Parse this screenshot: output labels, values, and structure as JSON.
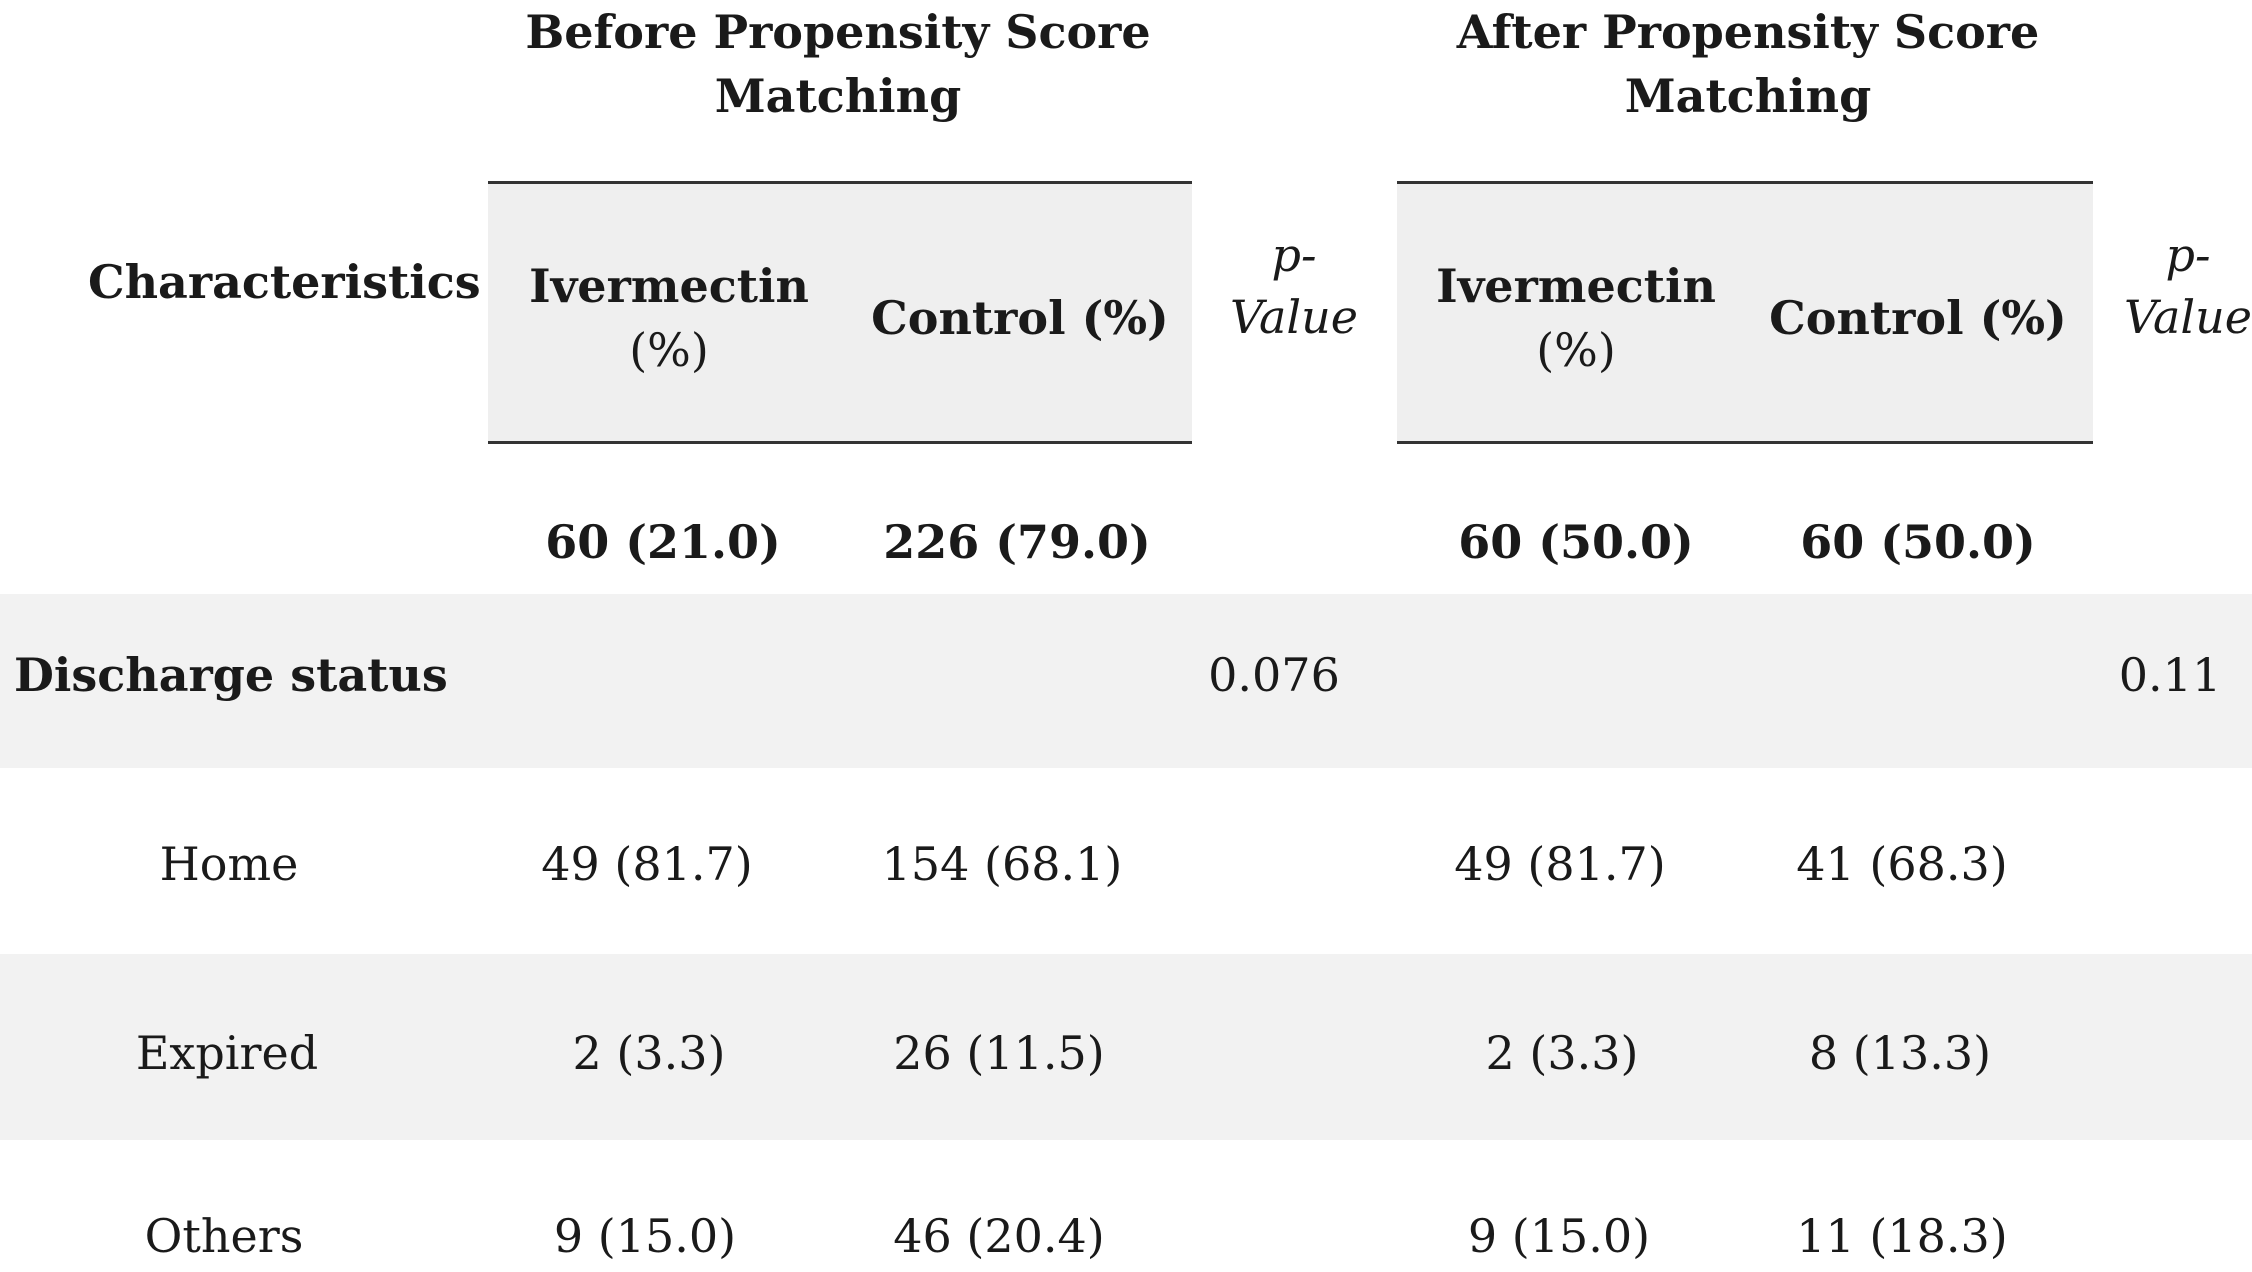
{
  "header": {
    "before_title_line1": "Before Propensity Score",
    "before_title_line2": "Matching",
    "after_title_line1": "After Propensity Score",
    "after_title_line2": "Matching",
    "characteristics": "Characteristics",
    "ivermectin_line1": "Ivermectin",
    "ivermectin_line2": "(%)",
    "control": "Control (%)",
    "pvalue_line1": "p-",
    "pvalue_line2": "Value"
  },
  "counts": {
    "before_ivermectin": "60 (21.0)",
    "before_control": "226 (79.0)",
    "after_ivermectin": "60 (50.0)",
    "after_control": "60 (50.0)"
  },
  "discharge": {
    "label": "Discharge status",
    "p_before": "0.076",
    "p_after": "0.11"
  },
  "rows": [
    {
      "label": "Home",
      "before_iver": "49 (81.7)",
      "before_ctrl": "154 (68.1)",
      "after_iver": "49 (81.7)",
      "after_ctrl": "41 (68.3)"
    },
    {
      "label": "Expired",
      "before_iver": "2 (3.3)",
      "before_ctrl": "26 (11.5)",
      "after_iver": "2 (3.3)",
      "after_ctrl": "8 (13.3)"
    },
    {
      "label": "Others",
      "before_iver": "9 (15.0)",
      "before_ctrl": "46 (20.4)",
      "after_iver": "9 (15.0)",
      "after_ctrl": "11 (18.3)"
    }
  ]
}
